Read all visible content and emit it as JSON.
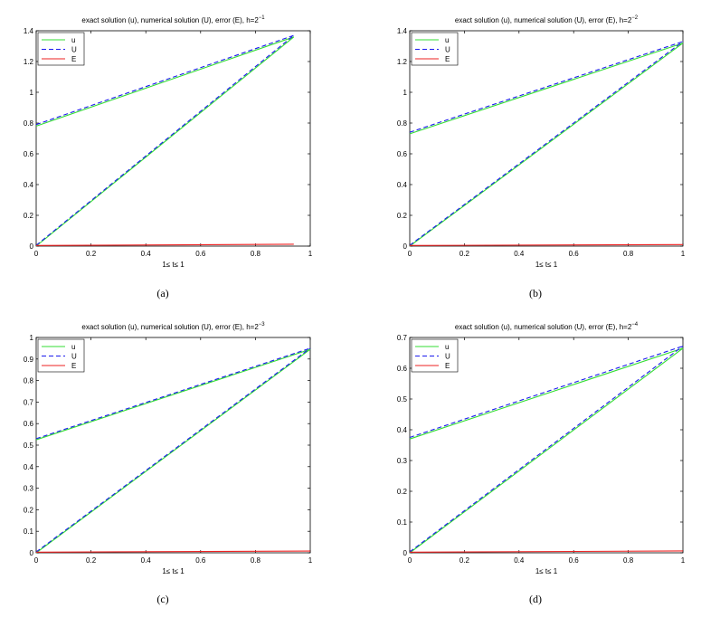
{
  "figure": {
    "panels": [
      {
        "caption": "(a)"
      },
      {
        "caption": "(b)"
      },
      {
        "caption": "(c)"
      },
      {
        "caption": "(d)"
      }
    ]
  },
  "colors": {
    "u": "#33dd33",
    "U": "#1a1aee",
    "E": "#ee2222"
  },
  "chart_data": [
    {
      "type": "line",
      "title_prefix": "exact solution (u), numerical solution (U), error (E), h=2",
      "title_exponent": "−1",
      "xlabel": "1≤ t≤ 1",
      "xlim": [
        0,
        1
      ],
      "ylim": [
        0,
        1.4
      ],
      "xticks": [
        "0",
        "0.2",
        "0.4",
        "0.6",
        "0.8",
        "1"
      ],
      "yticks": [
        "0",
        "0.2",
        "0.4",
        "0.6",
        "0.8",
        "1",
        "1.2",
        "1.4"
      ],
      "legend": {
        "position": "top-left",
        "entries": [
          "u",
          "U",
          "E"
        ]
      },
      "series": [
        {
          "name": "u",
          "style": "solid",
          "color": "#33dd33",
          "segments": [
            [
              [
                0,
                0.78
              ],
              [
                0.94,
                1.36
              ]
            ],
            [
              [
                0,
                0
              ],
              [
                0.94,
                1.36
              ]
            ]
          ]
        },
        {
          "name": "U",
          "style": "dashed",
          "color": "#1a1aee",
          "segments": [
            [
              [
                0,
                0.79
              ],
              [
                0.94,
                1.37
              ]
            ],
            [
              [
                0,
                0.005
              ],
              [
                0.94,
                1.37
              ]
            ]
          ]
        },
        {
          "name": "E",
          "style": "solid",
          "color": "#ee2222",
          "segments": [
            [
              [
                0,
                0.004
              ],
              [
                0.94,
                0.012
              ]
            ]
          ]
        }
      ]
    },
    {
      "type": "line",
      "title_prefix": "exact solution (u), numerical solution (U), error (E), h=2",
      "title_exponent": "−2",
      "xlabel": "1≤ t≤ 1",
      "xlim": [
        0,
        1
      ],
      "ylim": [
        0,
        1.4
      ],
      "xticks": [
        "0",
        "0.2",
        "0.4",
        "0.6",
        "0.8",
        "1"
      ],
      "yticks": [
        "0",
        "0.2",
        "0.4",
        "0.6",
        "0.8",
        "1",
        "1.2",
        "1.4"
      ],
      "legend": {
        "position": "top-left",
        "entries": [
          "u",
          "U",
          "E"
        ]
      },
      "series": [
        {
          "name": "u",
          "style": "solid",
          "color": "#33dd33",
          "segments": [
            [
              [
                0,
                0.73
              ],
              [
                1,
                1.32
              ]
            ],
            [
              [
                0,
                0
              ],
              [
                1,
                1.32
              ]
            ]
          ]
        },
        {
          "name": "U",
          "style": "dashed",
          "color": "#1a1aee",
          "segments": [
            [
              [
                0,
                0.74
              ],
              [
                1,
                1.33
              ]
            ],
            [
              [
                0,
                0.005
              ],
              [
                1,
                1.33
              ]
            ]
          ]
        },
        {
          "name": "E",
          "style": "solid",
          "color": "#ee2222",
          "segments": [
            [
              [
                0,
                0.004
              ],
              [
                1,
                0.01
              ]
            ]
          ]
        }
      ]
    },
    {
      "type": "line",
      "title_prefix": "exact solution (u), numerical solution (U), error (E), h=2",
      "title_exponent": "−3",
      "xlabel": "1≤ t≤ 1",
      "xlim": [
        0,
        1
      ],
      "ylim": [
        0,
        1
      ],
      "xticks": [
        "0",
        "0.2",
        "0.4",
        "0.6",
        "0.8",
        "1"
      ],
      "yticks": [
        "0",
        "0.1",
        "0.2",
        "0.3",
        "0.4",
        "0.5",
        "0.6",
        "0.7",
        "0.8",
        "0.9",
        "1"
      ],
      "legend": {
        "position": "top-left",
        "entries": [
          "u",
          "U",
          "E"
        ]
      },
      "series": [
        {
          "name": "u",
          "style": "solid",
          "color": "#33dd33",
          "segments": [
            [
              [
                0,
                0.525
              ],
              [
                1,
                0.945
              ]
            ],
            [
              [
                0,
                0
              ],
              [
                1,
                0.945
              ]
            ]
          ]
        },
        {
          "name": "U",
          "style": "dashed",
          "color": "#1a1aee",
          "segments": [
            [
              [
                0,
                0.53
              ],
              [
                1,
                0.95
              ]
            ],
            [
              [
                0,
                0.004
              ],
              [
                1,
                0.95
              ]
            ]
          ]
        },
        {
          "name": "E",
          "style": "solid",
          "color": "#ee2222",
          "segments": [
            [
              [
                0,
                0.003
              ],
              [
                1,
                0.008
              ]
            ]
          ]
        }
      ]
    },
    {
      "type": "line",
      "title_prefix": "exact solution (u), numerical solution (U), error (E), h=2",
      "title_exponent": "−4",
      "xlabel": "1≤ t≤ 1",
      "xlim": [
        0,
        1
      ],
      "ylim": [
        0,
        0.7
      ],
      "xticks": [
        "0",
        "0.2",
        "0.4",
        "0.6",
        "0.8",
        "1"
      ],
      "yticks": [
        "0",
        "0.1",
        "0.2",
        "0.3",
        "0.4",
        "0.5",
        "0.6",
        "0.7"
      ],
      "legend": {
        "position": "top-left",
        "entries": [
          "u",
          "U",
          "E"
        ]
      },
      "series": [
        {
          "name": "u",
          "style": "solid",
          "color": "#33dd33",
          "segments": [
            [
              [
                0,
                0.37
              ],
              [
                1,
                0.665
              ]
            ],
            [
              [
                0,
                0
              ],
              [
                1,
                0.665
              ]
            ]
          ]
        },
        {
          "name": "U",
          "style": "dashed",
          "color": "#1a1aee",
          "segments": [
            [
              [
                0,
                0.375
              ],
              [
                1,
                0.672
              ]
            ],
            [
              [
                0,
                0.003
              ],
              [
                1,
                0.672
              ]
            ]
          ]
        },
        {
          "name": "E",
          "style": "solid",
          "color": "#ee2222",
          "segments": [
            [
              [
                0,
                0.002
              ],
              [
                1,
                0.006
              ]
            ]
          ]
        }
      ]
    }
  ]
}
